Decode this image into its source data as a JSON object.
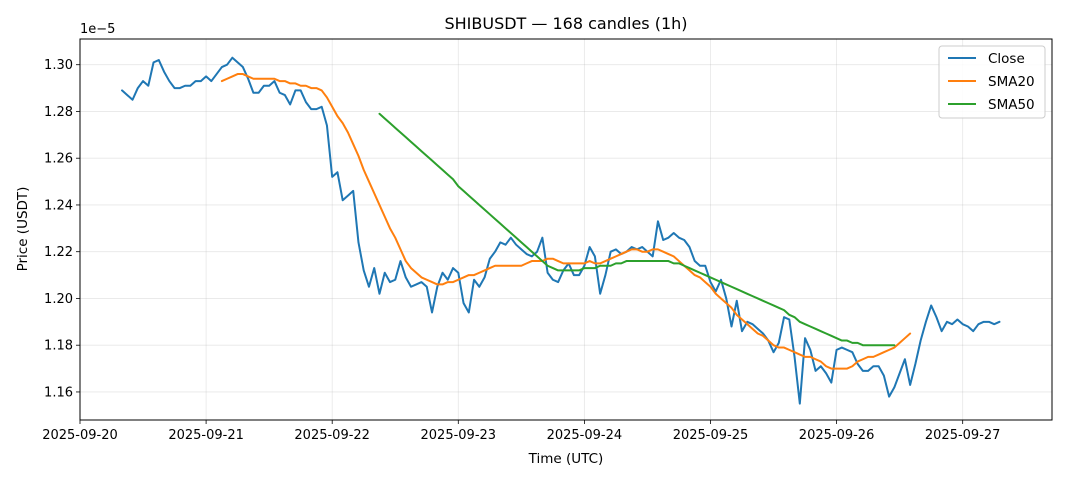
{
  "chart_data": {
    "type": "line",
    "title": "SHIBUSDT — 168 candles (1h)",
    "xlabel": "Time (UTC)",
    "ylabel": "Price (USDT)",
    "y_multiplier_label": "1e−5",
    "x_ticks": [
      "2025-09-20",
      "2025-09-21",
      "2025-09-22",
      "2025-09-23",
      "2025-09-24",
      "2025-09-25",
      "2025-09-26",
      "2025-09-27"
    ],
    "y_ticks": [
      "1.16",
      "1.18",
      "1.20",
      "1.22",
      "1.24",
      "1.26",
      "1.28",
      "1.30"
    ],
    "xlim": [
      "2025-09-20 00:00",
      "2025-09-27 17:00"
    ],
    "ylim": [
      1.148,
      1.311
    ],
    "grid": true,
    "legend_position": "top-right",
    "x_start": "2025-09-20 08:00",
    "x_step_hours": 1,
    "series": [
      {
        "name": "Close",
        "color": "#1f77b4",
        "values": [
          1.289,
          1.287,
          1.285,
          1.29,
          1.293,
          1.291,
          1.301,
          1.302,
          1.297,
          1.293,
          1.29,
          1.29,
          1.291,
          1.291,
          1.293,
          1.293,
          1.295,
          1.293,
          1.296,
          1.299,
          1.3,
          1.303,
          1.301,
          1.299,
          1.294,
          1.288,
          1.288,
          1.291,
          1.291,
          1.293,
          1.288,
          1.287,
          1.283,
          1.289,
          1.289,
          1.284,
          1.281,
          1.281,
          1.282,
          1.274,
          1.252,
          1.254,
          1.242,
          1.244,
          1.246,
          1.224,
          1.212,
          1.205,
          1.213,
          1.202,
          1.211,
          1.207,
          1.208,
          1.216,
          1.209,
          1.205,
          1.206,
          1.207,
          1.205,
          1.194,
          1.205,
          1.211,
          1.208,
          1.213,
          1.211,
          1.198,
          1.194,
          1.208,
          1.205,
          1.209,
          1.217,
          1.22,
          1.224,
          1.223,
          1.226,
          1.223,
          1.221,
          1.219,
          1.218,
          1.22,
          1.226,
          1.211,
          1.208,
          1.207,
          1.212,
          1.215,
          1.21,
          1.21,
          1.214,
          1.222,
          1.218,
          1.202,
          1.21,
          1.22,
          1.221,
          1.219,
          1.22,
          1.222,
          1.221,
          1.222,
          1.22,
          1.218,
          1.233,
          1.225,
          1.226,
          1.228,
          1.226,
          1.225,
          1.222,
          1.216,
          1.214,
          1.214,
          1.207,
          1.203,
          1.208,
          1.2,
          1.188,
          1.199,
          1.186,
          1.19,
          1.189,
          1.187,
          1.185,
          1.182,
          1.177,
          1.181,
          1.192,
          1.191,
          1.175,
          1.155,
          1.183,
          1.178,
          1.169,
          1.171,
          1.168,
          1.164,
          1.178,
          1.179,
          1.178,
          1.177,
          1.172,
          1.169,
          1.169,
          1.171,
          1.171,
          1.167,
          1.158,
          1.162,
          1.168,
          1.174,
          1.163,
          1.172,
          1.182,
          1.19,
          1.197,
          1.192,
          1.186,
          1.19,
          1.189,
          1.191,
          1.189,
          1.188,
          1.186,
          1.189,
          1.19,
          1.19,
          1.189,
          1.19
        ]
      },
      {
        "name": "SMA20",
        "color": "#ff7f0e",
        "start_index": 19,
        "values": [
          1.293,
          1.294,
          1.295,
          1.296,
          1.296,
          1.295,
          1.294,
          1.294,
          1.294,
          1.294,
          1.294,
          1.293,
          1.293,
          1.292,
          1.292,
          1.291,
          1.291,
          1.29,
          1.29,
          1.289,
          1.286,
          1.282,
          1.278,
          1.275,
          1.271,
          1.266,
          1.261,
          1.255,
          1.25,
          1.245,
          1.24,
          1.235,
          1.23,
          1.226,
          1.221,
          1.216,
          1.213,
          1.211,
          1.209,
          1.208,
          1.207,
          1.206,
          1.206,
          1.207,
          1.207,
          1.208,
          1.209,
          1.21,
          1.21,
          1.211,
          1.212,
          1.213,
          1.214,
          1.214,
          1.214,
          1.214,
          1.214,
          1.214,
          1.215,
          1.216,
          1.216,
          1.216,
          1.217,
          1.217,
          1.216,
          1.215,
          1.215,
          1.215,
          1.215,
          1.215,
          1.216,
          1.215,
          1.215,
          1.216,
          1.217,
          1.218,
          1.219,
          1.22,
          1.221,
          1.221,
          1.22,
          1.22,
          1.221,
          1.221,
          1.22,
          1.219,
          1.218,
          1.216,
          1.214,
          1.212,
          1.21,
          1.209,
          1.207,
          1.205,
          1.202,
          1.2,
          1.198,
          1.196,
          1.193,
          1.191,
          1.189,
          1.187,
          1.185,
          1.184,
          1.182,
          1.18,
          1.179,
          1.179,
          1.178,
          1.177,
          1.176,
          1.175,
          1.175,
          1.174,
          1.173,
          1.171,
          1.17,
          1.17,
          1.17,
          1.17,
          1.171,
          1.173,
          1.174,
          1.175,
          1.175,
          1.176,
          1.177,
          1.178,
          1.179,
          1.181,
          1.183,
          1.185
        ]
      },
      {
        "name": "SMA50",
        "color": "#2ca02c",
        "start_index": 49,
        "values": [
          1.279,
          1.277,
          1.275,
          1.273,
          1.271,
          1.269,
          1.267,
          1.265,
          1.263,
          1.261,
          1.259,
          1.257,
          1.255,
          1.253,
          1.251,
          1.248,
          1.246,
          1.244,
          1.242,
          1.24,
          1.238,
          1.236,
          1.234,
          1.232,
          1.23,
          1.228,
          1.226,
          1.224,
          1.222,
          1.22,
          1.218,
          1.216,
          1.214,
          1.213,
          1.212,
          1.212,
          1.212,
          1.212,
          1.212,
          1.213,
          1.213,
          1.213,
          1.214,
          1.214,
          1.214,
          1.215,
          1.215,
          1.216,
          1.216,
          1.216,
          1.216,
          1.216,
          1.216,
          1.216,
          1.216,
          1.216,
          1.215,
          1.215,
          1.214,
          1.213,
          1.212,
          1.211,
          1.21,
          1.209,
          1.208,
          1.207,
          1.206,
          1.205,
          1.204,
          1.203,
          1.202,
          1.201,
          1.2,
          1.199,
          1.198,
          1.197,
          1.196,
          1.195,
          1.193,
          1.192,
          1.19,
          1.189,
          1.188,
          1.187,
          1.186,
          1.185,
          1.184,
          1.183,
          1.182,
          1.182,
          1.181,
          1.181,
          1.18,
          1.18,
          1.18,
          1.18,
          1.18,
          1.18,
          1.18
        ]
      }
    ]
  }
}
